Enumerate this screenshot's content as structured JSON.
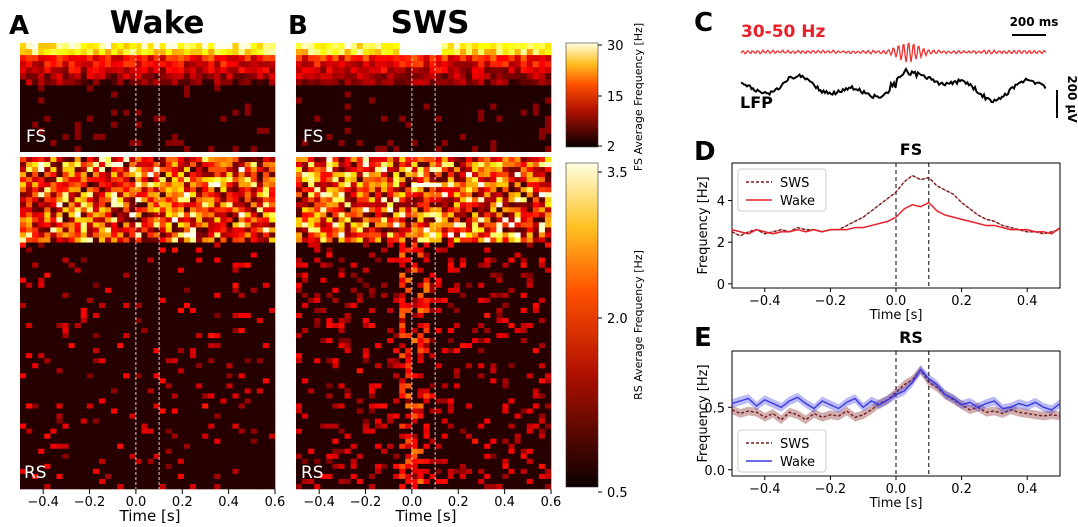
{
  "panels": {
    "A": {
      "letter": "A",
      "title": "Wake",
      "fs_label": "FS",
      "rs_label": "RS",
      "xlabel": "Time [s]"
    },
    "B": {
      "letter": "B",
      "title": "SWS",
      "fs_label": "FS",
      "rs_label": "RS",
      "xlabel": "Time [s]"
    },
    "C": {
      "letter": "C",
      "band_label": "30-50 Hz",
      "time_scale": "200 ms",
      "lfp_label": "LFP",
      "amp_scale": "200 µV"
    },
    "D": {
      "letter": "D",
      "title": "FS"
    },
    "E": {
      "letter": "E",
      "title": "RS"
    }
  },
  "colorbars": {
    "fs": {
      "label": "FS Average Frequency [Hz]",
      "ticks": [
        "30",
        "15",
        "2"
      ]
    },
    "rs": {
      "label": "RS Average Frequency [Hz]",
      "ticks": [
        "3.5",
        "2.0",
        "0.5"
      ]
    }
  },
  "colors": {
    "sws": "#7a1a1a",
    "wake_d": "#e8202a",
    "wake_e": "#3a3ae0",
    "band": "#f03030"
  },
  "chart_data": [
    {
      "type": "heatmap",
      "panel": "A",
      "title": "Wake",
      "xlabel": "Time [s]",
      "xlim": [
        -0.5,
        0.6
      ],
      "xticks": [
        "−0.4",
        "−0.2",
        "0.0",
        "0.2",
        "0.4",
        "0.6"
      ],
      "markers": [
        0.0,
        0.1
      ],
      "rows": [
        "FS",
        "RS"
      ]
    },
    {
      "type": "heatmap",
      "panel": "B",
      "title": "SWS",
      "xlabel": "Time [s]",
      "xlim": [
        -0.5,
        0.6
      ],
      "xticks": [
        "−0.4",
        "−0.2",
        "0.0",
        "0.2",
        "0.4",
        "0.6"
      ],
      "markers": [
        0.0,
        0.1
      ],
      "rows": [
        "FS",
        "RS"
      ]
    },
    {
      "type": "line",
      "panel": "D",
      "title": "FS",
      "xlabel": "Time [s]",
      "ylabel": "Frequency [Hz]",
      "xlim": [
        -0.5,
        0.5
      ],
      "ylim": [
        -0.2,
        5.8
      ],
      "xticks": [
        "−0.4",
        "−0.2",
        "0.0",
        "0.2",
        "0.4"
      ],
      "yticks": [
        "0",
        "2",
        "4"
      ],
      "legend": "top-left",
      "markers": [
        0.0,
        0.1
      ],
      "x": [
        -0.5,
        -0.475,
        -0.45,
        -0.425,
        -0.4,
        -0.375,
        -0.35,
        -0.325,
        -0.3,
        -0.275,
        -0.25,
        -0.225,
        -0.2,
        -0.175,
        -0.15,
        -0.125,
        -0.1,
        -0.075,
        -0.05,
        -0.025,
        0.0,
        0.025,
        0.05,
        0.075,
        0.1,
        0.125,
        0.15,
        0.175,
        0.2,
        0.225,
        0.25,
        0.275,
        0.3,
        0.325,
        0.35,
        0.375,
        0.4,
        0.425,
        0.45,
        0.475,
        0.5
      ],
      "series": [
        {
          "name": "SWS",
          "values": [
            2.5,
            2.3,
            2.5,
            2.6,
            2.4,
            2.5,
            2.6,
            2.5,
            2.7,
            2.6,
            2.6,
            2.5,
            2.6,
            2.6,
            2.8,
            3.0,
            3.2,
            3.5,
            3.8,
            4.1,
            4.4,
            4.9,
            5.2,
            5.0,
            5.1,
            4.7,
            4.5,
            4.3,
            3.9,
            3.6,
            3.3,
            3.1,
            3.0,
            2.8,
            2.7,
            2.6,
            2.5,
            2.5,
            2.4,
            2.5,
            2.6
          ]
        },
        {
          "name": "Wake",
          "values": [
            2.6,
            2.5,
            2.4,
            2.6,
            2.5,
            2.4,
            2.5,
            2.5,
            2.6,
            2.5,
            2.6,
            2.5,
            2.6,
            2.6,
            2.6,
            2.7,
            2.7,
            2.8,
            2.9,
            3.0,
            3.2,
            3.6,
            3.8,
            3.7,
            3.9,
            3.5,
            3.3,
            3.2,
            3.1,
            3.0,
            2.9,
            2.8,
            2.8,
            2.7,
            2.6,
            2.6,
            2.6,
            2.5,
            2.5,
            2.4,
            2.7
          ]
        }
      ]
    },
    {
      "type": "line",
      "panel": "E",
      "title": "RS",
      "xlabel": "Time [s]",
      "ylabel": "Frequency [Hz]",
      "xlim": [
        -0.5,
        0.5
      ],
      "ylim": [
        -0.05,
        0.95
      ],
      "xticks": [
        "−0.4",
        "−0.2",
        "0.0",
        "0.2",
        "0.4"
      ],
      "yticks": [
        "0.0",
        "0.5"
      ],
      "legend": "bottom-left",
      "markers": [
        0.0,
        0.1
      ],
      "x": [
        -0.5,
        -0.475,
        -0.45,
        -0.425,
        -0.4,
        -0.375,
        -0.35,
        -0.325,
        -0.3,
        -0.275,
        -0.25,
        -0.225,
        -0.2,
        -0.175,
        -0.15,
        -0.125,
        -0.1,
        -0.075,
        -0.05,
        -0.025,
        0.0,
        0.025,
        0.05,
        0.075,
        0.1,
        0.125,
        0.15,
        0.175,
        0.2,
        0.225,
        0.25,
        0.275,
        0.3,
        0.325,
        0.35,
        0.375,
        0.4,
        0.425,
        0.45,
        0.475,
        0.5
      ],
      "series": [
        {
          "name": "SWS",
          "values": [
            0.48,
            0.45,
            0.47,
            0.46,
            0.42,
            0.45,
            0.4,
            0.46,
            0.44,
            0.4,
            0.45,
            0.42,
            0.44,
            0.43,
            0.47,
            0.42,
            0.44,
            0.48,
            0.53,
            0.56,
            0.62,
            0.68,
            0.72,
            0.8,
            0.7,
            0.66,
            0.6,
            0.56,
            0.52,
            0.48,
            0.5,
            0.46,
            0.47,
            0.45,
            0.48,
            0.46,
            0.45,
            0.44,
            0.43,
            0.44,
            0.43
          ]
        },
        {
          "name": "Wake",
          "values": [
            0.53,
            0.55,
            0.57,
            0.51,
            0.56,
            0.53,
            0.5,
            0.55,
            0.58,
            0.53,
            0.49,
            0.55,
            0.52,
            0.49,
            0.54,
            0.57,
            0.5,
            0.55,
            0.52,
            0.56,
            0.6,
            0.63,
            0.7,
            0.8,
            0.73,
            0.68,
            0.6,
            0.57,
            0.52,
            0.54,
            0.5,
            0.53,
            0.55,
            0.49,
            0.5,
            0.53,
            0.51,
            0.54,
            0.5,
            0.48,
            0.53
          ]
        }
      ]
    }
  ]
}
